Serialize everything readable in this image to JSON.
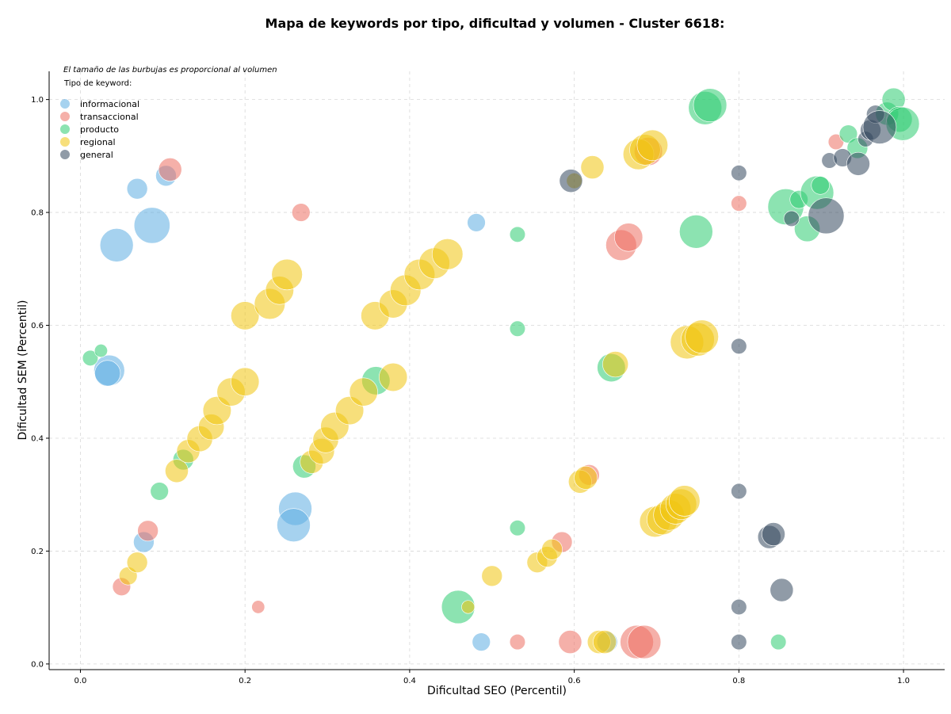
{
  "chart_data": {
    "type": "scatter",
    "title": "Mapa de keywords por tipo, dificultad y volumen - Cluster 6618:",
    "xlabel": "Dificultad SEO (Percentil)",
    "ylabel": "Dificultad SEM (Percentil)",
    "xlim": [
      -0.038,
      1.05
    ],
    "ylim": [
      -0.01,
      1.05
    ],
    "x_ticks": [
      "0.0",
      "0.2",
      "0.4",
      "0.6",
      "0.8",
      "1.0"
    ],
    "y_ticks": [
      "0.0",
      "0.2",
      "0.4",
      "0.6",
      "0.8",
      "1.0"
    ],
    "grid": true,
    "note": "El tamaño de las burbujas es proporcional al volumen",
    "legend_title": "Tipo de keyword:",
    "legend_position": "top-left",
    "series": [
      {
        "name": "informacional",
        "color": "#5DADE2",
        "points": [
          {
            "x": 0.035,
            "y": 0.52,
            "v": 9
          },
          {
            "x": 0.033,
            "y": 0.515,
            "v": 7
          },
          {
            "x": 0.044,
            "y": 0.742,
            "v": 10
          },
          {
            "x": 0.069,
            "y": 0.842,
            "v": 5
          },
          {
            "x": 0.087,
            "y": 0.777,
            "v": 11
          },
          {
            "x": 0.104,
            "y": 0.865,
            "v": 5
          },
          {
            "x": 0.077,
            "y": 0.216,
            "v": 5
          },
          {
            "x": 0.261,
            "y": 0.275,
            "v": 10
          },
          {
            "x": 0.259,
            "y": 0.246,
            "v": 10
          },
          {
            "x": 0.481,
            "y": 0.782,
            "v": 4
          },
          {
            "x": 0.487,
            "y": 0.039,
            "v": 4
          },
          {
            "x": 0.64,
            "y": 0.039,
            "v": 5
          }
        ]
      },
      {
        "name": "transaccional",
        "color": "#EC7063",
        "points": [
          {
            "x": 0.109,
            "y": 0.876,
            "v": 6
          },
          {
            "x": 0.268,
            "y": 0.8,
            "v": 4
          },
          {
            "x": 0.082,
            "y": 0.236,
            "v": 5
          },
          {
            "x": 0.05,
            "y": 0.137,
            "v": 4
          },
          {
            "x": 0.216,
            "y": 0.101,
            "v": 2
          },
          {
            "x": 0.531,
            "y": 0.039,
            "v": 3
          },
          {
            "x": 0.595,
            "y": 0.039,
            "v": 6
          },
          {
            "x": 0.585,
            "y": 0.216,
            "v": 5
          },
          {
            "x": 0.618,
            "y": 0.335,
            "v": 5
          },
          {
            "x": 0.657,
            "y": 0.742,
            "v": 9
          },
          {
            "x": 0.666,
            "y": 0.756,
            "v": 8
          },
          {
            "x": 0.69,
            "y": 0.908,
            "v": 8
          },
          {
            "x": 0.676,
            "y": 0.039,
            "v": 10
          },
          {
            "x": 0.685,
            "y": 0.039,
            "v": 10
          },
          {
            "x": 0.8,
            "y": 0.816,
            "v": 3
          },
          {
            "x": 0.918,
            "y": 0.925,
            "v": 3
          }
        ]
      },
      {
        "name": "producto",
        "color": "#2ECC71",
        "points": [
          {
            "x": 0.012,
            "y": 0.542,
            "v": 3
          },
          {
            "x": 0.025,
            "y": 0.555,
            "v": 2
          },
          {
            "x": 0.096,
            "y": 0.306,
            "v": 4
          },
          {
            "x": 0.125,
            "y": 0.362,
            "v": 5
          },
          {
            "x": 0.272,
            "y": 0.35,
            "v": 6
          },
          {
            "x": 0.359,
            "y": 0.502,
            "v": 8
          },
          {
            "x": 0.459,
            "y": 0.101,
            "v": 10
          },
          {
            "x": 0.531,
            "y": 0.761,
            "v": 3
          },
          {
            "x": 0.531,
            "y": 0.594,
            "v": 3
          },
          {
            "x": 0.531,
            "y": 0.241,
            "v": 3
          },
          {
            "x": 0.645,
            "y": 0.525,
            "v": 8
          },
          {
            "x": 0.748,
            "y": 0.766,
            "v": 10
          },
          {
            "x": 0.759,
            "y": 0.985,
            "v": 10
          },
          {
            "x": 0.765,
            "y": 0.99,
            "v": 10
          },
          {
            "x": 0.848,
            "y": 0.039,
            "v": 3
          },
          {
            "x": 0.857,
            "y": 0.81,
            "v": 11
          },
          {
            "x": 0.873,
            "y": 0.823,
            "v": 4
          },
          {
            "x": 0.883,
            "y": 0.771,
            "v": 7
          },
          {
            "x": 0.895,
            "y": 0.835,
            "v": 10
          },
          {
            "x": 0.899,
            "y": 0.848,
            "v": 4
          },
          {
            "x": 0.933,
            "y": 0.939,
            "v": 4
          },
          {
            "x": 0.944,
            "y": 0.914,
            "v": 5
          },
          {
            "x": 0.98,
            "y": 0.975,
            "v": 6
          },
          {
            "x": 0.988,
            "y": 1.0,
            "v": 6
          },
          {
            "x": 0.995,
            "y": 0.965,
            "v": 7
          },
          {
            "x": 0.999,
            "y": 0.957,
            "v": 10
          }
        ]
      },
      {
        "name": "regional",
        "color": "#F1C40F",
        "points": [
          {
            "x": 0.058,
            "y": 0.156,
            "v": 4
          },
          {
            "x": 0.069,
            "y": 0.18,
            "v": 5
          },
          {
            "x": 0.117,
            "y": 0.342,
            "v": 6
          },
          {
            "x": 0.131,
            "y": 0.377,
            "v": 6
          },
          {
            "x": 0.145,
            "y": 0.399,
            "v": 7
          },
          {
            "x": 0.159,
            "y": 0.42,
            "v": 7
          },
          {
            "x": 0.166,
            "y": 0.449,
            "v": 8
          },
          {
            "x": 0.183,
            "y": 0.482,
            "v": 8
          },
          {
            "x": 0.2,
            "y": 0.5,
            "v": 8
          },
          {
            "x": 0.2,
            "y": 0.617,
            "v": 8
          },
          {
            "x": 0.23,
            "y": 0.638,
            "v": 9
          },
          {
            "x": 0.242,
            "y": 0.662,
            "v": 8
          },
          {
            "x": 0.251,
            "y": 0.69,
            "v": 9
          },
          {
            "x": 0.281,
            "y": 0.358,
            "v": 6
          },
          {
            "x": 0.293,
            "y": 0.377,
            "v": 7
          },
          {
            "x": 0.298,
            "y": 0.397,
            "v": 7
          },
          {
            "x": 0.309,
            "y": 0.421,
            "v": 8
          },
          {
            "x": 0.327,
            "y": 0.449,
            "v": 8
          },
          {
            "x": 0.344,
            "y": 0.482,
            "v": 8
          },
          {
            "x": 0.358,
            "y": 0.617,
            "v": 8
          },
          {
            "x": 0.38,
            "y": 0.638,
            "v": 8
          },
          {
            "x": 0.38,
            "y": 0.508,
            "v": 8
          },
          {
            "x": 0.395,
            "y": 0.662,
            "v": 9
          },
          {
            "x": 0.412,
            "y": 0.69,
            "v": 9
          },
          {
            "x": 0.43,
            "y": 0.71,
            "v": 9
          },
          {
            "x": 0.446,
            "y": 0.726,
            "v": 9
          },
          {
            "x": 0.471,
            "y": 0.101,
            "v": 2
          },
          {
            "x": 0.5,
            "y": 0.156,
            "v": 5
          },
          {
            "x": 0.555,
            "y": 0.18,
            "v": 5
          },
          {
            "x": 0.567,
            "y": 0.19,
            "v": 5
          },
          {
            "x": 0.573,
            "y": 0.203,
            "v": 5
          },
          {
            "x": 0.6,
            "y": 0.856,
            "v": 3
          },
          {
            "x": 0.607,
            "y": 0.323,
            "v": 6
          },
          {
            "x": 0.614,
            "y": 0.33,
            "v": 6
          },
          {
            "x": 0.622,
            "y": 0.88,
            "v": 6
          },
          {
            "x": 0.63,
            "y": 0.039,
            "v": 6
          },
          {
            "x": 0.637,
            "y": 0.039,
            "v": 6
          },
          {
            "x": 0.65,
            "y": 0.531,
            "v": 7
          },
          {
            "x": 0.678,
            "y": 0.903,
            "v": 9
          },
          {
            "x": 0.686,
            "y": 0.911,
            "v": 9
          },
          {
            "x": 0.695,
            "y": 0.919,
            "v": 9
          },
          {
            "x": 0.698,
            "y": 0.252,
            "v": 9
          },
          {
            "x": 0.707,
            "y": 0.256,
            "v": 9
          },
          {
            "x": 0.715,
            "y": 0.264,
            "v": 9
          },
          {
            "x": 0.723,
            "y": 0.275,
            "v": 9
          },
          {
            "x": 0.73,
            "y": 0.283,
            "v": 9
          },
          {
            "x": 0.734,
            "y": 0.289,
            "v": 9
          },
          {
            "x": 0.737,
            "y": 0.57,
            "v": 10
          },
          {
            "x": 0.75,
            "y": 0.575,
            "v": 10
          },
          {
            "x": 0.755,
            "y": 0.58,
            "v": 10
          }
        ]
      },
      {
        "name": "general",
        "color": "#34495E",
        "points": [
          {
            "x": 0.596,
            "y": 0.856,
            "v": 6
          },
          {
            "x": 0.8,
            "y": 0.87,
            "v": 3
          },
          {
            "x": 0.8,
            "y": 0.563,
            "v": 3
          },
          {
            "x": 0.8,
            "y": 0.306,
            "v": 3
          },
          {
            "x": 0.8,
            "y": 0.101,
            "v": 3
          },
          {
            "x": 0.8,
            "y": 0.039,
            "v": 3
          },
          {
            "x": 0.837,
            "y": 0.225,
            "v": 6
          },
          {
            "x": 0.842,
            "y": 0.23,
            "v": 6
          },
          {
            "x": 0.852,
            "y": 0.131,
            "v": 6
          },
          {
            "x": 0.864,
            "y": 0.789,
            "v": 3
          },
          {
            "x": 0.906,
            "y": 0.794,
            "v": 11
          },
          {
            "x": 0.91,
            "y": 0.892,
            "v": 3
          },
          {
            "x": 0.926,
            "y": 0.897,
            "v": 4
          },
          {
            "x": 0.945,
            "y": 0.886,
            "v": 6
          },
          {
            "x": 0.954,
            "y": 0.93,
            "v": 3
          },
          {
            "x": 0.96,
            "y": 0.946,
            "v": 5
          },
          {
            "x": 0.966,
            "y": 0.974,
            "v": 4
          },
          {
            "x": 0.971,
            "y": 0.951,
            "v": 10
          }
        ]
      }
    ]
  }
}
